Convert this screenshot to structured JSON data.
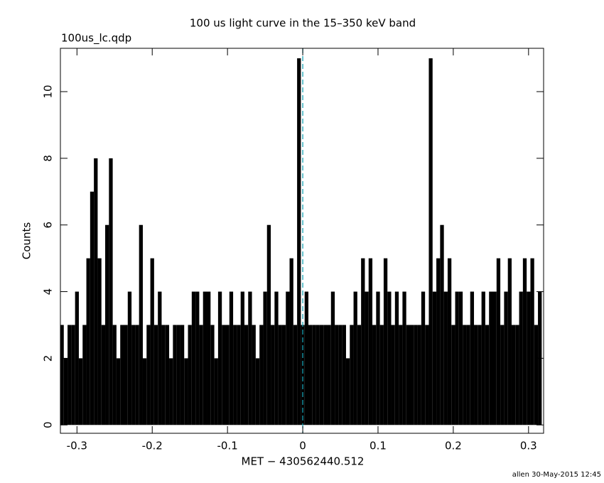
{
  "chart_data": {
    "type": "bar",
    "title": "100 us light curve in the 15–350 keV band",
    "subtitle": "100us_lc.qdp",
    "xlabel": "MET − 430562440.512",
    "ylabel": "Counts",
    "footer": "allen 30-May-2015 12:45",
    "color": "#000000",
    "x": [
      -0.32,
      -0.315,
      -0.31,
      -0.305,
      -0.3,
      -0.295,
      -0.29,
      -0.285,
      -0.28,
      -0.275,
      -0.27,
      -0.265,
      -0.26,
      -0.255,
      -0.25,
      -0.245,
      -0.24,
      -0.235,
      -0.23,
      -0.225,
      -0.22,
      -0.215,
      -0.21,
      -0.205,
      -0.2,
      -0.195,
      -0.19,
      -0.185,
      -0.18,
      -0.175,
      -0.17,
      -0.165,
      -0.16,
      -0.155,
      -0.15,
      -0.145,
      -0.14,
      -0.135,
      -0.13,
      -0.125,
      -0.12,
      -0.115,
      -0.11,
      -0.105,
      -0.1,
      -0.095,
      -0.09,
      -0.085,
      -0.08,
      -0.075,
      -0.07,
      -0.065,
      -0.06,
      -0.055,
      -0.05,
      -0.045,
      -0.04,
      -0.035,
      -0.03,
      -0.025,
      -0.02,
      -0.015,
      -0.01,
      -0.005,
      0,
      0.005,
      0.01,
      0.015,
      0.02,
      0.025,
      0.03,
      0.035,
      0.04,
      0.045,
      0.05,
      0.055,
      0.06,
      0.065,
      0.07,
      0.075,
      0.08,
      0.085,
      0.09,
      0.095,
      0.1,
      0.105,
      0.11,
      0.115,
      0.12,
      0.125,
      0.13,
      0.135,
      0.14,
      0.145,
      0.15,
      0.155,
      0.16,
      0.165,
      0.17,
      0.175,
      0.18,
      0.185,
      0.19,
      0.195,
      0.2,
      0.205,
      0.21,
      0.215,
      0.22,
      0.225,
      0.23,
      0.235,
      0.24,
      0.245,
      0.25,
      0.255,
      0.26,
      0.265,
      0.27,
      0.275,
      0.28,
      0.285,
      0.29,
      0.295,
      0.3,
      0.305,
      0.31,
      0.315
    ],
    "values": [
      3,
      2,
      3,
      3,
      4,
      2,
      3,
      5,
      7,
      8,
      5,
      3,
      6,
      8,
      3,
      2,
      3,
      3,
      4,
      3,
      3,
      6,
      2,
      3,
      5,
      3,
      4,
      3,
      3,
      2,
      3,
      3,
      3,
      2,
      3,
      4,
      4,
      3,
      4,
      4,
      3,
      2,
      4,
      3,
      3,
      4,
      3,
      3,
      4,
      3,
      4,
      3,
      2,
      3,
      4,
      6,
      3,
      4,
      3,
      3,
      4,
      5,
      3,
      11,
      3,
      4,
      3,
      3,
      3,
      3,
      3,
      3,
      4,
      3,
      3,
      3,
      2,
      3,
      4,
      3,
      5,
      4,
      5,
      3,
      4,
      3,
      5,
      4,
      3,
      4,
      3,
      4,
      3,
      3,
      3,
      3,
      4,
      3,
      11,
      4,
      5,
      6,
      4,
      5,
      3,
      4,
      4,
      3,
      3,
      4,
      3,
      3,
      4,
      3,
      4,
      4,
      5,
      3,
      4,
      5,
      3,
      3,
      4,
      5,
      4,
      5,
      3,
      4
    ],
    "xlim": [
      -0.322,
      0.32
    ],
    "ylim": [
      -0.25,
      11.3
    ],
    "xticks": [
      -0.3,
      -0.2,
      -0.1,
      0,
      0.1,
      0.2,
      0.3
    ],
    "yticks": [
      0,
      2,
      4,
      6,
      8,
      10
    ],
    "reference_line": {
      "x": 0,
      "color": "#1aa3b5"
    }
  }
}
